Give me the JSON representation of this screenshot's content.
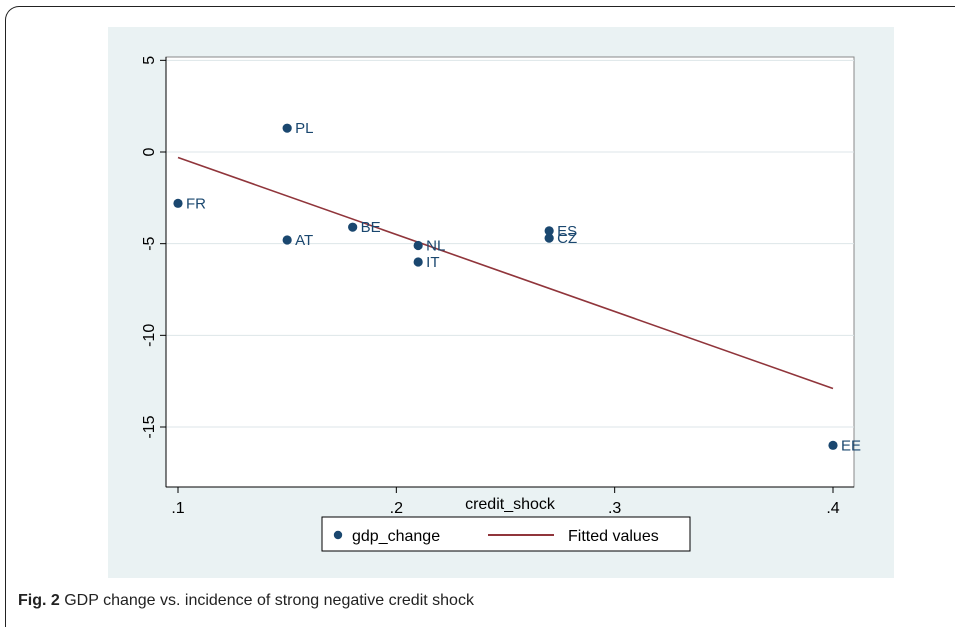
{
  "caption": {
    "label": "Fig. 2",
    "text": "GDP change vs. incidence of strong negative credit shock"
  },
  "colors": {
    "panel_bg": "#eaf2f3",
    "plot_bg": "#ffffff",
    "marker": "#1a476f",
    "fit_line": "#90353b",
    "grid": "#dde6e8",
    "label": "#1a476f"
  },
  "chart_data": {
    "type": "scatter",
    "xlabel": "credit_shock",
    "ylabel": "",
    "xlim": [
      0.1,
      0.4
    ],
    "ylim": [
      -15,
      5
    ],
    "x_ticks": [
      0.1,
      0.2,
      0.3,
      0.4
    ],
    "x_tick_labels": [
      ".1",
      ".2",
      ".3",
      ".4"
    ],
    "y_ticks": [
      5,
      0,
      -5,
      -10,
      -15
    ],
    "y_tick_labels": [
      "5",
      "0",
      "-5",
      "-10",
      "-15"
    ],
    "grid": true,
    "legend_position": "bottom",
    "series": [
      {
        "name": "gdp_change",
        "kind": "scatter",
        "points": [
          {
            "label": "PL",
            "x": 0.15,
            "y": 1.3
          },
          {
            "label": "FR",
            "x": 0.1,
            "y": -2.8
          },
          {
            "label": "BE",
            "x": 0.18,
            "y": -4.1
          },
          {
            "label": "AT",
            "x": 0.15,
            "y": -4.8
          },
          {
            "label": "NL",
            "x": 0.21,
            "y": -5.1
          },
          {
            "label": "IT",
            "x": 0.21,
            "y": -6.0
          },
          {
            "label": "ES",
            "x": 0.27,
            "y": -4.3
          },
          {
            "label": "CZ",
            "x": 0.27,
            "y": -4.7
          },
          {
            "label": "EE",
            "x": 0.4,
            "y": -16.0
          }
        ]
      },
      {
        "name": "Fitted values",
        "kind": "line",
        "points": [
          {
            "x": 0.1,
            "y": -0.3
          },
          {
            "x": 0.4,
            "y": -12.9
          }
        ]
      }
    ]
  }
}
